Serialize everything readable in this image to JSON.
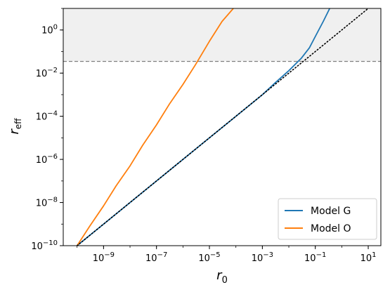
{
  "chart_data": {
    "type": "line",
    "xscale": "log",
    "yscale": "log",
    "xlabel": "r",
    "xlabel_sub": "0",
    "ylabel": "r",
    "ylabel_sub": "eff",
    "xlim": [
      3e-11,
      30
    ],
    "ylim": [
      1e-10,
      10
    ],
    "x_ticks": [
      {
        "value": 1e-09,
        "base": "10",
        "exp": "−9"
      },
      {
        "value": 1e-07,
        "base": "10",
        "exp": "−7"
      },
      {
        "value": 1e-05,
        "base": "10",
        "exp": "−5"
      },
      {
        "value": 0.001,
        "base": "10",
        "exp": "−3"
      },
      {
        "value": 0.1,
        "base": "10",
        "exp": "−1"
      },
      {
        "value": 10,
        "base": "10",
        "exp": "1"
      }
    ],
    "y_ticks": [
      {
        "value": 1e-10,
        "base": "10",
        "exp": "−10"
      },
      {
        "value": 1e-08,
        "base": "10",
        "exp": "−8"
      },
      {
        "value": 1e-06,
        "base": "10",
        "exp": "−6"
      },
      {
        "value": 0.0001,
        "base": "10",
        "exp": "−4"
      },
      {
        "value": 0.01,
        "base": "10",
        "exp": "−2"
      },
      {
        "value": 1,
        "base": "10",
        "exp": "0"
      }
    ],
    "threshold": {
      "y": 0.035,
      "shaded_above": true,
      "shade_color": "#f0f0f0",
      "line_color": "#808080",
      "style": "dashed"
    },
    "legend_position": "lower-right",
    "series": [
      {
        "name": "Model G",
        "color": "#1f77b4",
        "style": "solid",
        "x": [
          1e-10,
          1e-09,
          1e-08,
          1e-07,
          1e-06,
          1e-05,
          0.0001,
          0.001,
          0.003,
          0.01,
          0.03,
          0.06,
          0.1,
          0.2,
          0.35
        ],
        "y": [
          1e-10,
          1e-09,
          1e-08,
          1e-07,
          1e-06,
          1e-05,
          0.0001,
          0.001,
          0.0035,
          0.013,
          0.05,
          0.15,
          0.5,
          2.5,
          10
        ]
      },
      {
        "name": "Model O",
        "color": "#ff7f0e",
        "style": "solid",
        "x": [
          1e-10,
          3e-10,
          1e-09,
          3e-09,
          1e-08,
          3e-08,
          1e-07,
          3e-07,
          1e-06,
          3e-06,
          1e-05,
          3e-05,
          8e-05
        ],
        "y": [
          1e-10,
          8e-10,
          7e-09,
          6e-08,
          5e-07,
          4.5e-06,
          4e-05,
          0.00035,
          0.003,
          0.025,
          0.3,
          2.5,
          10
        ]
      },
      {
        "name": "",
        "color": "#000000",
        "style": "dotted",
        "x": [
          1e-10,
          10
        ],
        "y": [
          1e-10,
          10
        ]
      }
    ]
  }
}
